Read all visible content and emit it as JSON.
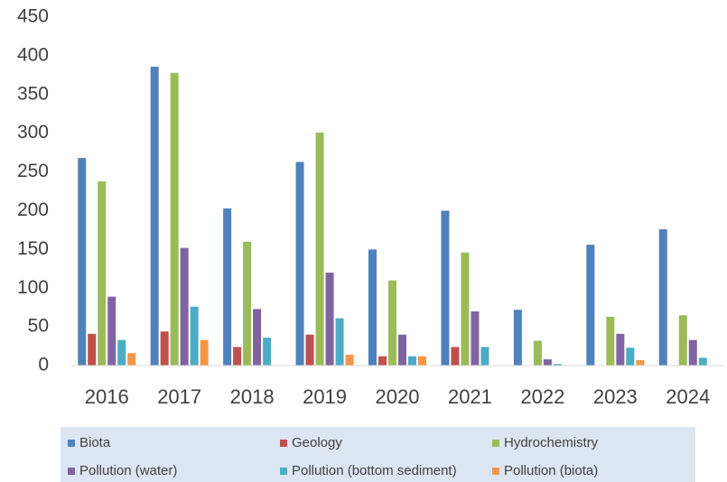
{
  "chart_data": {
    "type": "bar",
    "categories": [
      "2016",
      "2017",
      "2018",
      "2019",
      "2020",
      "2021",
      "2022",
      "2023",
      "2024"
    ],
    "series": [
      {
        "name": "Biota",
        "color": "#4f81bd",
        "values": [
          268,
          386,
          203,
          263,
          150,
          200,
          72,
          156,
          176
        ]
      },
      {
        "name": "Geology",
        "color": "#c0504d",
        "values": [
          41,
          44,
          24,
          40,
          12,
          24,
          0,
          0,
          0
        ]
      },
      {
        "name": "Hydrochemistry",
        "color": "#9bbb59",
        "values": [
          238,
          378,
          160,
          301,
          110,
          146,
          32,
          63,
          65
        ]
      },
      {
        "name": "Pollution (water)",
        "color": "#8064a2",
        "values": [
          89,
          152,
          73,
          120,
          40,
          70,
          8,
          41,
          33
        ]
      },
      {
        "name": "Pollution (bottom sediment)",
        "color": "#4bacc6",
        "values": [
          33,
          76,
          36,
          61,
          12,
          24,
          2,
          23,
          10
        ]
      },
      {
        "name": "Pollution (biota)",
        "color": "#f79646",
        "values": [
          16,
          33,
          0,
          14,
          12,
          0,
          0,
          7,
          0
        ]
      }
    ],
    "ylim": [
      0,
      450
    ],
    "yticks": [
      0,
      50,
      100,
      150,
      200,
      250,
      300,
      350,
      400,
      450
    ],
    "grid": false,
    "legend": "bottom"
  }
}
